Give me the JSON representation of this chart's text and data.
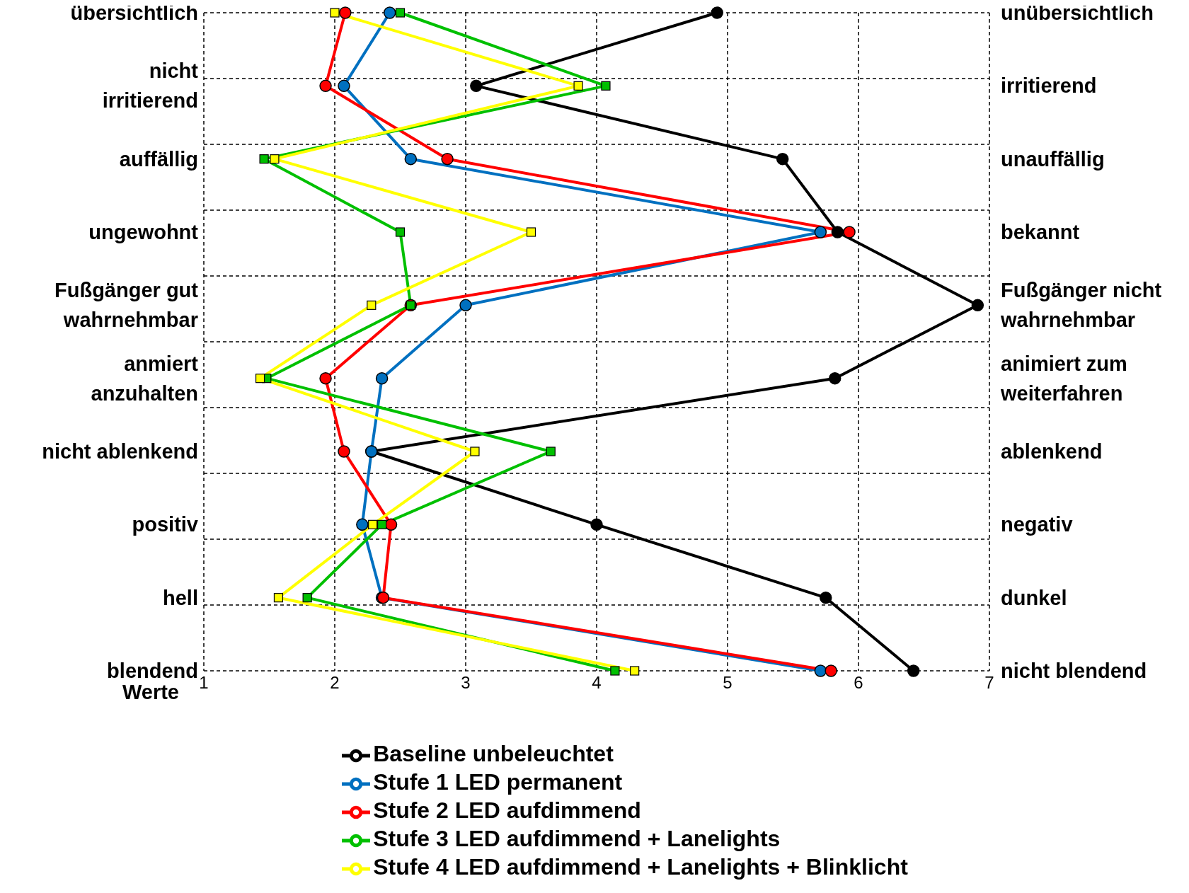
{
  "chart_data": {
    "type": "line",
    "orientation": "horizontal",
    "xlabel": "Werte",
    "categories": [
      "übersichtlich",
      "nicht irritierend",
      "auffällig",
      "ungewohnt",
      "Fußgänger gut wahrnehmbar",
      "anmiert anzuhalten",
      "nicht ablenkend",
      "positiv",
      "hell",
      "blendend"
    ],
    "y2_categories": [
      "unübersichtlich",
      "irritierend",
      "unauffällig",
      "bekannt",
      "Fußgänger nicht wahrnehmbar",
      "animiert zum weiterfahren",
      "ablenkend",
      "negativ",
      "dunkel",
      "nicht blendend"
    ],
    "xlim": [
      1,
      7
    ],
    "xticks": [
      1,
      2,
      3,
      4,
      5,
      6,
      7
    ],
    "grid": true,
    "legend": "bottom",
    "series": [
      {
        "name": "Baseline unbeleuchtet",
        "color": "#000000",
        "marker": "circle",
        "values": [
          4.92,
          3.08,
          5.42,
          5.84,
          6.91,
          5.82,
          2.28,
          4.0,
          5.75,
          6.42
        ]
      },
      {
        "name": "Stufe 1 LED permanent",
        "color": "#0070c0",
        "marker": "circle",
        "values": [
          2.42,
          2.07,
          2.58,
          5.71,
          3.0,
          2.36,
          2.28,
          2.21,
          2.36,
          5.71
        ]
      },
      {
        "name": "Stufe 2 LED aufdimmend",
        "color": "#ff0000",
        "marker": "circle",
        "values": [
          2.08,
          1.93,
          2.86,
          5.93,
          2.58,
          1.93,
          2.07,
          2.43,
          2.37,
          5.79
        ]
      },
      {
        "name": "Stufe 3 LED aufdimmend + Lanelights",
        "color": "#00c000",
        "marker": "square",
        "values": [
          2.5,
          4.07,
          1.46,
          2.5,
          2.58,
          1.48,
          3.65,
          2.36,
          1.79,
          4.14
        ]
      },
      {
        "name": "Stufe 4 LED aufdimmend + Lanelights + Blinklicht",
        "color": "#ffff00",
        "marker": "square",
        "values": [
          2.0,
          3.86,
          1.54,
          3.5,
          2.28,
          1.43,
          3.07,
          2.29,
          1.57,
          4.29
        ]
      }
    ]
  }
}
